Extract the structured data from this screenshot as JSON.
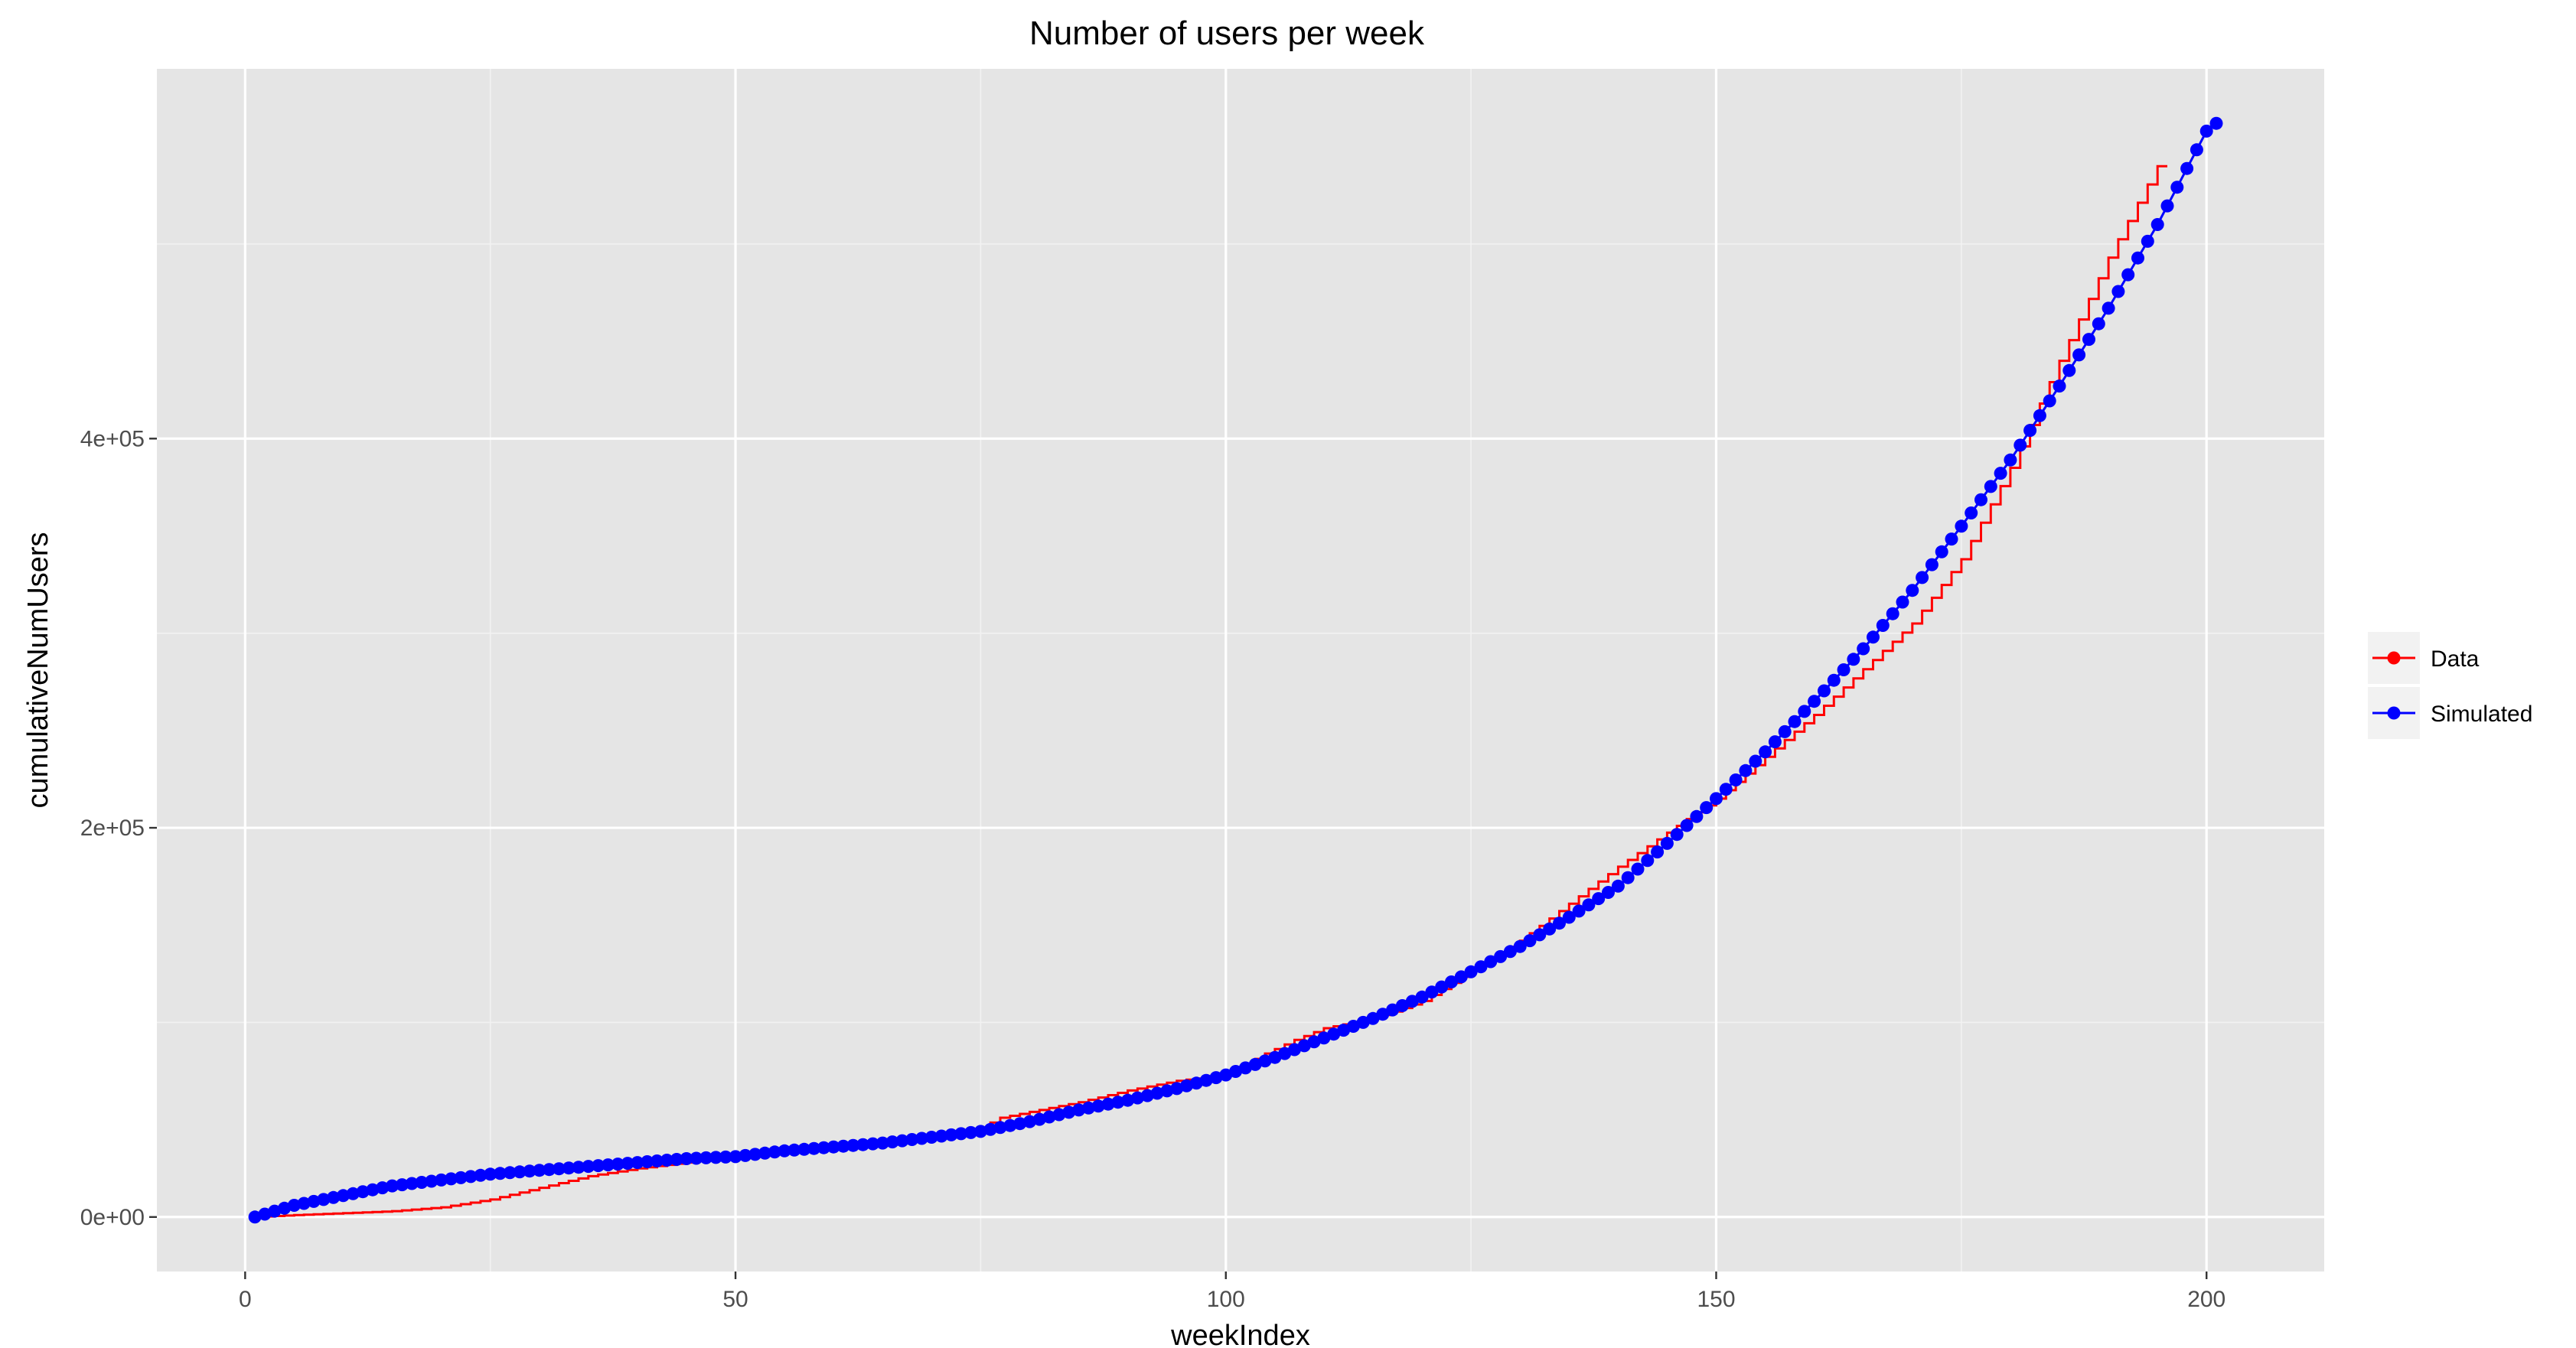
{
  "chart_data": {
    "type": "line",
    "title": "Number of users per week",
    "xlabel": "weekIndex",
    "ylabel": "cumulativeNumUsers",
    "xlim": [
      -9,
      212
    ],
    "ylim": [
      -28000,
      590000
    ],
    "x_ticks": [
      0,
      50,
      100,
      150,
      200
    ],
    "x_tick_labels": [
      "0",
      "50",
      "100",
      "150",
      "200"
    ],
    "y_ticks": [
      0,
      200000,
      400000
    ],
    "y_tick_labels": [
      "0e+00",
      "2e+05",
      "4e+05"
    ],
    "x_minor_ticks": [
      25,
      75,
      125,
      175
    ],
    "y_minor_ticks": [
      100000,
      300000,
      500000
    ],
    "grid": true,
    "panel_background": "#e5e5e5",
    "legend": {
      "position": "right",
      "entries": [
        {
          "label": "Data",
          "color": "#ff0000"
        },
        {
          "label": "Simulated",
          "color": "#0000ff"
        }
      ]
    },
    "series": [
      {
        "name": "Data",
        "color": "#ff0000",
        "style": "step",
        "x": [
          1,
          5,
          10,
          15,
          20,
          25,
          30,
          35,
          40,
          45,
          50,
          55,
          60,
          65,
          70,
          75,
          77,
          80,
          85,
          90,
          95,
          100,
          104,
          107,
          110,
          115,
          120,
          130,
          140,
          150,
          160,
          170,
          175,
          180,
          185,
          190,
          195
        ],
        "y": [
          0,
          1000,
          2000,
          3000,
          5000,
          9000,
          15000,
          21000,
          25000,
          28000,
          31000,
          34000,
          37000,
          40000,
          42000,
          46000,
          51000,
          54000,
          59000,
          65000,
          70000,
          73000,
          84000,
          91000,
          97000,
          102000,
          111000,
          142000,
          180000,
          215000,
          258000,
          305000,
          338000,
          385000,
          440000,
          493000,
          540000
        ]
      },
      {
        "name": "Simulated",
        "color": "#0000ff",
        "style": "points+line",
        "x": [
          1,
          5,
          10,
          15,
          20,
          25,
          30,
          35,
          40,
          45,
          50,
          55,
          60,
          65,
          70,
          75,
          80,
          85,
          90,
          95,
          100,
          105,
          110,
          115,
          120,
          125,
          130,
          135,
          140,
          145,
          150,
          155,
          160,
          165,
          170,
          175,
          180,
          185,
          190,
          195,
          200,
          201
        ],
        "y": [
          0,
          6000,
          11000,
          16000,
          19000,
          22000,
          24000,
          26000,
          28000,
          30000,
          31000,
          34000,
          36000,
          38000,
          41000,
          44000,
          49000,
          55000,
          60000,
          66000,
          73000,
          82000,
          92000,
          102000,
          113000,
          126000,
          139000,
          154000,
          170000,
          192000,
          215000,
          239000,
          265000,
          292000,
          322000,
          355000,
          389000,
          427000,
          467000,
          510000,
          558000,
          562000
        ]
      }
    ]
  }
}
